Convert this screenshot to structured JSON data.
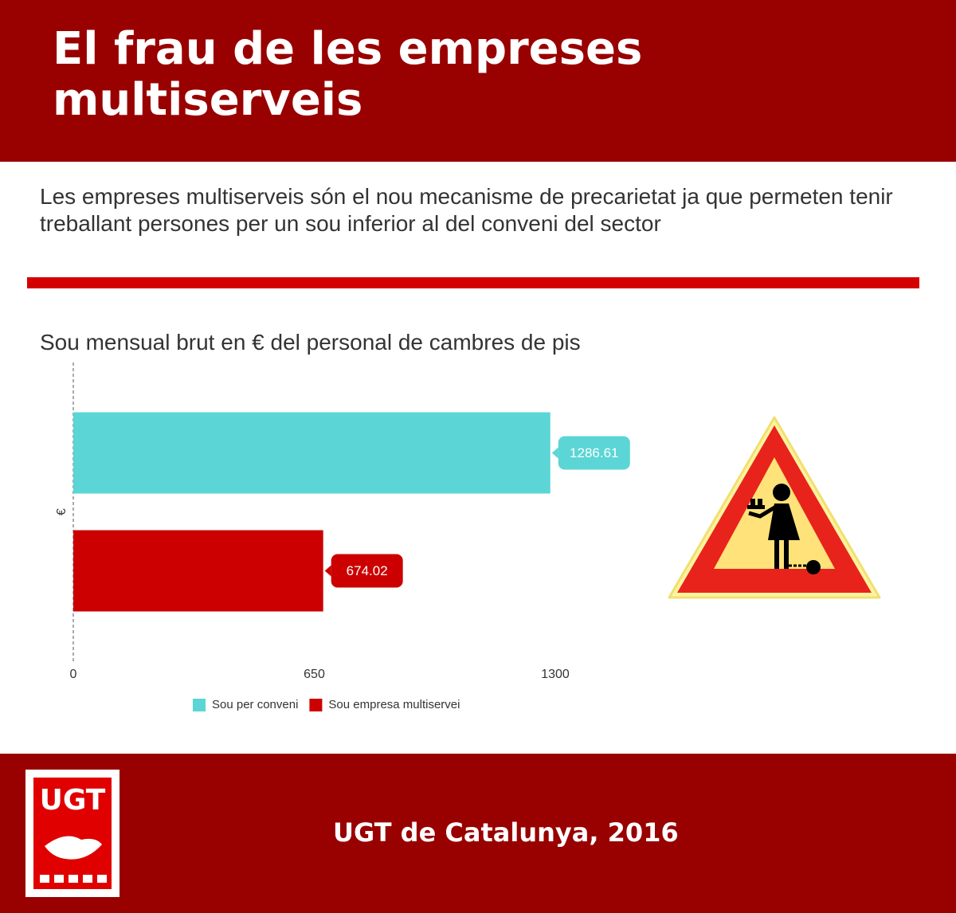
{
  "header": {
    "title": "El frau de les empreses multiserveis"
  },
  "intro": "Les empreses multiserveis són el nou mecanisme de precarietat ja que permeten tenir treballant persones per un sou inferior al del conveni del sector",
  "chart_data": {
    "type": "bar",
    "orientation": "horizontal",
    "title": "Sou mensual brut en € del personal de cambres de pis",
    "ylabel": "€",
    "categories": [
      null
    ],
    "series": [
      {
        "name": "Sou per conveni",
        "color": "#5bd5d5",
        "values": [
          1286.61
        ]
      },
      {
        "name": "Sou empresa multiservei",
        "color": "#cc0000",
        "values": [
          674.02
        ]
      }
    ],
    "xlim": [
      0,
      1300
    ],
    "xticks": [
      0,
      650,
      1300
    ],
    "legend": "bottom"
  },
  "footer": {
    "logo": "UGT",
    "text": "UGT de Catalunya, 2016"
  }
}
